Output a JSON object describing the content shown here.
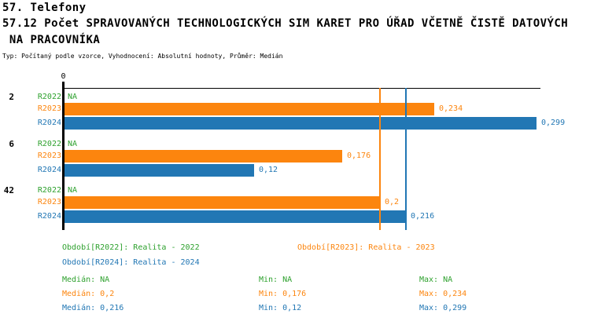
{
  "title": {
    "line1": "57. Telefony",
    "line2": "57.12 Počet SPRAVOVANÝCH TECHNOLOGICKÝCH SIM KARET PRO ÚŘAD VČETNĚ ČISTĚ DATOVÝCH",
    "line3": " NA PRACOVNÍKA",
    "subtitle": "Typ: Počítaný podle vzorce, Vyhodnocení: Absolutní hodnoty, Průměr: Medián"
  },
  "colors": {
    "R2022": "#2EA12E",
    "R2023": "#FC850E",
    "R2024": "#2277B4",
    "axis": "#000000"
  },
  "chart_data": {
    "type": "bar",
    "orientation": "horizontal",
    "title": "57.12 Počet SPRAVOVANÝCH TECHNOLOGICKÝCH SIM KARET PRO ÚŘAD VČETNĚ ČISTĚ DATOVÝCH NA PRACOVNÍKA",
    "axis": {
      "origin_label": "0",
      "xmin": 0,
      "xmax": 0.301,
      "grid": false
    },
    "series_names": [
      "R2022",
      "R2023",
      "R2024"
    ],
    "groups": [
      {
        "label": "2",
        "bars": [
          {
            "series": "R2022",
            "value": null,
            "display": "NA"
          },
          {
            "series": "R2023",
            "value": 0.234,
            "display": "0,234"
          },
          {
            "series": "R2024",
            "value": 0.299,
            "display": "0,299"
          }
        ]
      },
      {
        "label": "6",
        "bars": [
          {
            "series": "R2022",
            "value": null,
            "display": "NA"
          },
          {
            "series": "R2023",
            "value": 0.176,
            "display": "0,176"
          },
          {
            "series": "R2024",
            "value": 0.12,
            "display": "0,12"
          }
        ]
      },
      {
        "label": "42",
        "bars": [
          {
            "series": "R2022",
            "value": null,
            "display": "NA"
          },
          {
            "series": "R2023",
            "value": 0.2,
            "display": "0,2"
          },
          {
            "series": "R2024",
            "value": 0.216,
            "display": "0,216"
          }
        ]
      }
    ],
    "median_lines": [
      {
        "series": "R2023",
        "value": 0.2
      },
      {
        "series": "R2024",
        "value": 0.216
      }
    ]
  },
  "legend": {
    "items": [
      {
        "label": "Období[R2022]: Realita - 2022",
        "series": "R2022"
      },
      {
        "label": "Období[R2023]: Realita - 2023",
        "series": "R2023"
      },
      {
        "label": "Období[R2024]: Realita - 2024",
        "series": "R2024"
      }
    ]
  },
  "stats": {
    "rows": [
      {
        "series": "R2022",
        "median": "Medián: NA",
        "min": "Min: NA",
        "max": "Max: NA"
      },
      {
        "series": "R2023",
        "median": "Medián: 0,2",
        "min": "Min: 0,176",
        "max": "Max: 0,234"
      },
      {
        "series": "R2024",
        "median": "Medián: 0,216",
        "min": "Min: 0,12",
        "max": "Max: 0,299"
      }
    ]
  }
}
